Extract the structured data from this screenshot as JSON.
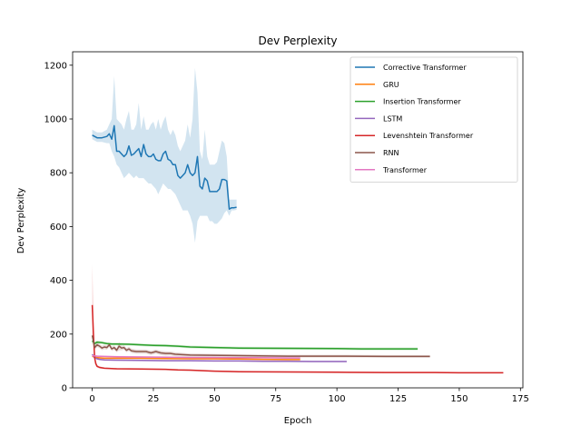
{
  "chart_data": {
    "type": "line",
    "title": "Dev Perplexity",
    "xlabel": "Epoch",
    "ylabel": "Dev Perplexity",
    "xlim": [
      -8,
      176
    ],
    "ylim": [
      0,
      1250
    ],
    "xticks": [
      0,
      25,
      50,
      75,
      100,
      125,
      150,
      175
    ],
    "yticks": [
      0,
      200,
      400,
      600,
      800,
      1000,
      1200
    ],
    "grid": false,
    "legend_position": "top-right",
    "series": [
      {
        "name": "Corrective Transformer",
        "color": "#1f77b4",
        "x": [
          0,
          2,
          4,
          6,
          7,
          8,
          9,
          10,
          11,
          12,
          13,
          14,
          15,
          16,
          17,
          18,
          19,
          20,
          21,
          22,
          23,
          24,
          25,
          26,
          27,
          28,
          29,
          30,
          31,
          32,
          33,
          34,
          35,
          36,
          37,
          38,
          39,
          40,
          41,
          42,
          43,
          44,
          45,
          46,
          47,
          48,
          49,
          50,
          51,
          52,
          53,
          54,
          55,
          56,
          57,
          58,
          59
        ],
        "y": [
          940,
          930,
          930,
          935,
          945,
          925,
          975,
          880,
          880,
          870,
          860,
          870,
          900,
          865,
          870,
          880,
          890,
          860,
          905,
          870,
          860,
          860,
          870,
          850,
          845,
          845,
          870,
          880,
          850,
          845,
          830,
          830,
          790,
          780,
          790,
          800,
          830,
          800,
          790,
          800,
          860,
          750,
          740,
          780,
          770,
          730,
          730,
          730,
          730,
          740,
          775,
          775,
          770,
          665,
          670,
          670,
          672
        ],
        "upper": [
          960,
          950,
          950,
          960,
          980,
          1000,
          1160,
          1000,
          990,
          980,
          960,
          1000,
          1030,
          960,
          960,
          980,
          1060,
          960,
          1010,
          960,
          960,
          980,
          990,
          960,
          1000,
          960,
          990,
          1010,
          960,
          940,
          960,
          940,
          900,
          880,
          900,
          920,
          980,
          930,
          1000,
          1190,
          1100,
          880,
          850,
          960,
          860,
          830,
          830,
          830,
          840,
          880,
          920,
          910,
          860,
          700,
          700,
          700,
          700
        ],
        "lower": [
          925,
          915,
          915,
          910,
          910,
          880,
          860,
          830,
          820,
          800,
          780,
          790,
          800,
          790,
          780,
          790,
          780,
          780,
          780,
          770,
          760,
          760,
          750,
          740,
          720,
          740,
          760,
          750,
          740,
          740,
          730,
          720,
          700,
          680,
          660,
          660,
          660,
          640,
          610,
          540,
          620,
          640,
          640,
          640,
          640,
          620,
          620,
          610,
          610,
          620,
          630,
          650,
          660,
          640,
          660,
          660,
          662
        ]
      },
      {
        "name": "GRU",
        "color": "#ff7f0e",
        "x": [
          0,
          2,
          5,
          10,
          20,
          30,
          40,
          50,
          60,
          70,
          80,
          85
        ],
        "y": [
          118,
          112,
          110,
          110,
          110,
          109,
          108,
          108,
          107,
          106,
          105,
          105
        ],
        "upper": [
          125,
          115,
          113,
          112,
          112,
          111,
          110,
          110,
          109,
          108,
          107,
          107
        ],
        "lower": [
          112,
          109,
          107,
          107,
          107,
          106,
          106,
          105,
          105,
          104,
          103,
          103
        ]
      },
      {
        "name": "Insertion Transformer",
        "color": "#2ca02c",
        "x": [
          0,
          1,
          2,
          4,
          6,
          8,
          10,
          15,
          20,
          25,
          30,
          35,
          40,
          50,
          60,
          80,
          100,
          110,
          120,
          133
        ],
        "y": [
          175,
          165,
          170,
          168,
          165,
          163,
          163,
          162,
          160,
          158,
          157,
          155,
          152,
          150,
          148,
          147,
          146,
          145,
          145,
          145
        ],
        "upper": [
          185,
          172,
          176,
          173,
          170,
          168,
          168,
          167,
          165,
          163,
          162,
          160,
          157,
          155,
          153,
          152,
          151,
          150,
          150,
          150
        ],
        "lower": [
          165,
          158,
          164,
          163,
          160,
          158,
          158,
          157,
          155,
          153,
          152,
          150,
          147,
          145,
          143,
          142,
          141,
          140,
          140,
          140
        ]
      },
      {
        "name": "LSTM",
        "color": "#9467bd",
        "x": [
          0,
          1,
          2,
          3,
          5,
          10,
          20,
          30,
          40,
          50,
          60,
          70,
          80,
          90,
          100,
          104
        ],
        "y": [
          125,
          112,
          108,
          106,
          104,
          103,
          102,
          101,
          101,
          100,
          100,
          99,
          99,
          98,
          98,
          98
        ],
        "upper": [
          130,
          116,
          112,
          110,
          107,
          106,
          105,
          104,
          104,
          103,
          103,
          102,
          102,
          101,
          101,
          101
        ],
        "lower": [
          120,
          108,
          104,
          102,
          101,
          100,
          99,
          98,
          98,
          97,
          97,
          96,
          96,
          95,
          95,
          95
        ]
      },
      {
        "name": "Levenshtein Transformer",
        "color": "#d62728",
        "x": [
          0,
          0.5,
          1,
          1.5,
          2,
          3,
          5,
          10,
          20,
          30,
          35,
          40,
          50,
          60,
          80,
          100,
          120,
          140,
          150,
          160,
          168
        ],
        "y": [
          308,
          200,
          110,
          90,
          80,
          76,
          73,
          71,
          70,
          69,
          67,
          66,
          62,
          60,
          59,
          58,
          57,
          57,
          56,
          56,
          56
        ],
        "upper": [
          460,
          300,
          140,
          100,
          85,
          80,
          76,
          74,
          73,
          72,
          70,
          69,
          65,
          63,
          62,
          61,
          60,
          60,
          59,
          59,
          59
        ],
        "lower": [
          200,
          150,
          90,
          80,
          75,
          72,
          70,
          68,
          67,
          66,
          64,
          63,
          59,
          57,
          56,
          55,
          54,
          54,
          53,
          53,
          53
        ]
      },
      {
        "name": "RNN",
        "color": "#8c564b",
        "x": [
          0,
          1,
          2,
          3,
          4,
          5,
          6,
          7,
          8,
          9,
          10,
          11,
          12,
          13,
          14,
          15,
          16,
          18,
          20,
          22,
          24,
          26,
          28,
          30,
          32,
          34,
          40,
          60,
          80,
          100,
          120,
          138
        ],
        "y": [
          195,
          150,
          160,
          155,
          148,
          152,
          150,
          160,
          145,
          150,
          140,
          155,
          148,
          150,
          140,
          145,
          138,
          135,
          135,
          135,
          130,
          135,
          130,
          128,
          128,
          125,
          122,
          120,
          118,
          118,
          117,
          117
        ],
        "upper": [
          200,
          158,
          168,
          162,
          156,
          160,
          158,
          168,
          153,
          158,
          148,
          170,
          156,
          158,
          148,
          153,
          146,
          143,
          143,
          143,
          138,
          143,
          138,
          136,
          135,
          132,
          128,
          125,
          123,
          123,
          122,
          122
        ],
        "lower": [
          185,
          142,
          152,
          148,
          140,
          144,
          142,
          152,
          137,
          142,
          132,
          140,
          140,
          142,
          132,
          137,
          130,
          127,
          127,
          127,
          122,
          127,
          122,
          120,
          121,
          118,
          116,
          115,
          113,
          113,
          112,
          112
        ]
      },
      {
        "name": "Transformer",
        "color": "#e377c2",
        "x": [
          0,
          2,
          5,
          10,
          20,
          30,
          40,
          50,
          60,
          70,
          80,
          85
        ],
        "y": [
          120,
          118,
          117,
          116,
          115,
          114,
          113,
          113,
          112,
          112,
          111,
          111
        ],
        "upper": [
          124,
          121,
          120,
          119,
          118,
          117,
          116,
          116,
          115,
          115,
          114,
          114
        ],
        "lower": [
          116,
          115,
          114,
          113,
          112,
          111,
          110,
          110,
          109,
          109,
          108,
          108
        ]
      }
    ]
  }
}
